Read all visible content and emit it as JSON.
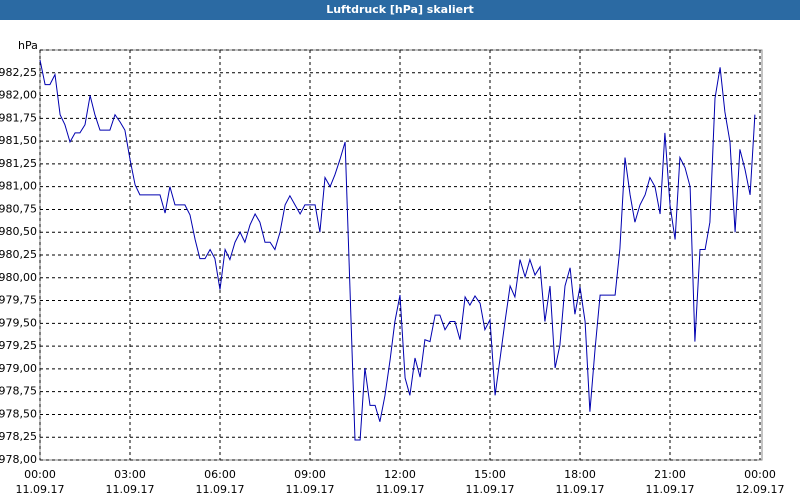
{
  "chart_data": {
    "type": "line",
    "title": "Luftdruck [hPa] skaliert",
    "y_unit": "hPa",
    "color": "#0000b0",
    "grid": true,
    "ylim": [
      978,
      982.5
    ],
    "yticks": [
      {
        "value": 978,
        "label": "978,00"
      },
      {
        "value": 978.25,
        "label": "978,25"
      },
      {
        "value": 978.5,
        "label": "978,50"
      },
      {
        "value": 978.75,
        "label": "978,75"
      },
      {
        "value": 979,
        "label": "979,00"
      },
      {
        "value": 979.25,
        "label": "979,25"
      },
      {
        "value": 979.5,
        "label": "979,50"
      },
      {
        "value": 979.75,
        "label": "979,75"
      },
      {
        "value": 980,
        "label": "980,00"
      },
      {
        "value": 980.25,
        "label": "980,25"
      },
      {
        "value": 980.5,
        "label": "980,50"
      },
      {
        "value": 980.75,
        "label": "980,75"
      },
      {
        "value": 981,
        "label": "981,00"
      },
      {
        "value": 981.25,
        "label": "981,25"
      },
      {
        "value": 981.5,
        "label": "981,50"
      },
      {
        "value": 981.75,
        "label": "981,75"
      },
      {
        "value": 982,
        "label": "982,00"
      },
      {
        "value": 982.25,
        "label": "982,25"
      }
    ],
    "xlim": [
      0,
      24
    ],
    "xticks": [
      {
        "value": 0,
        "label": "00:00"
      },
      {
        "value": 3,
        "label": "03:00"
      },
      {
        "value": 6,
        "label": "06:00"
      },
      {
        "value": 9,
        "label": "09:00"
      },
      {
        "value": 12,
        "label": "12:00"
      },
      {
        "value": 15,
        "label": "15:00"
      },
      {
        "value": 18,
        "label": "18:00"
      },
      {
        "value": 21,
        "label": "21:00"
      },
      {
        "value": 24,
        "label": "00:00"
      }
    ],
    "xtick_dates": [
      "11.09.17",
      "11.09.17",
      "11.09.17",
      "11.09.17",
      "11.09.17",
      "11.09.17",
      "11.09.17",
      "11.09.17",
      "12.09.17"
    ],
    "x": [
      0,
      0.17,
      0.33,
      0.5,
      0.67,
      0.83,
      1,
      1.17,
      1.33,
      1.5,
      1.67,
      1.83,
      2,
      2.17,
      2.33,
      2.5,
      2.67,
      2.83,
      3,
      3.17,
      3.33,
      3.5,
      3.67,
      3.83,
      4,
      4.17,
      4.33,
      4.5,
      4.67,
      4.83,
      5,
      5.17,
      5.33,
      5.5,
      5.67,
      5.83,
      6,
      6.17,
      6.33,
      6.5,
      6.67,
      6.83,
      7,
      7.17,
      7.33,
      7.5,
      7.67,
      7.83,
      8,
      8.17,
      8.33,
      8.5,
      8.67,
      8.83,
      9,
      9.17,
      9.33,
      9.5,
      9.67,
      9.83,
      10,
      10.17,
      10.5,
      10.67,
      10.83,
      11,
      11.17,
      11.33,
      11.5,
      11.67,
      11.83,
      12,
      12.17,
      12.33,
      12.5,
      12.67,
      12.83,
      13,
      13.17,
      13.33,
      13.5,
      13.67,
      13.83,
      14,
      14.17,
      14.33,
      14.5,
      14.67,
      14.83,
      15,
      15.17,
      15.33,
      15.5,
      15.67,
      15.83,
      16,
      16.17,
      16.33,
      16.5,
      16.67,
      16.83,
      17,
      17.17,
      17.33,
      17.5,
      17.67,
      17.83,
      18,
      18.17,
      18.33,
      18.5,
      18.67,
      18.83,
      19,
      19.17,
      19.33,
      19.5,
      19.67,
      19.83,
      20,
      20.17,
      20.33,
      20.5,
      20.67,
      20.83,
      21,
      21.17,
      21.33,
      21.5,
      21.67,
      21.83,
      22,
      22.17,
      22.33,
      22.5,
      22.67,
      22.83,
      23,
      23.17,
      23.33,
      23.5,
      23.67,
      23.83
    ],
    "values": [
      982.39,
      982.12,
      982.12,
      982.23,
      981.79,
      981.68,
      981.49,
      981.59,
      981.59,
      981.68,
      982.0,
      981.79,
      981.62,
      981.62,
      981.62,
      981.79,
      981.71,
      981.62,
      981.3,
      981.02,
      980.91,
      980.91,
      980.91,
      980.91,
      980.91,
      980.71,
      981.0,
      980.8,
      980.8,
      980.8,
      980.69,
      980.42,
      980.21,
      980.21,
      980.31,
      980.21,
      979.87,
      980.31,
      980.2,
      980.39,
      980.5,
      980.39,
      980.58,
      980.7,
      980.61,
      980.39,
      980.39,
      980.31,
      980.5,
      980.8,
      980.9,
      980.8,
      980.7,
      980.8,
      980.8,
      980.8,
      980.5,
      981.1,
      981.0,
      981.13,
      981.3,
      981.49,
      978.22,
      978.22,
      979.01,
      978.6,
      978.6,
      978.42,
      978.71,
      979.1,
      979.52,
      979.81,
      978.9,
      978.71,
      979.12,
      978.91,
      979.32,
      979.3,
      979.59,
      979.59,
      979.43,
      979.52,
      979.52,
      979.32,
      979.79,
      979.7,
      979.8,
      979.72,
      979.43,
      979.54,
      978.71,
      979.1,
      979.52,
      979.91,
      979.79,
      980.2,
      980.01,
      980.2,
      980.03,
      980.12,
      979.52,
      979.91,
      979.01,
      979.26,
      979.91,
      980.11,
      979.6,
      979.9,
      979.52,
      978.53,
      979.21,
      979.81,
      979.81,
      979.81,
      979.81,
      980.32,
      981.32,
      980.91,
      980.61,
      980.8,
      980.91,
      981.1,
      981.0,
      980.7,
      981.59,
      980.8,
      980.42,
      981.32,
      981.21,
      981.0,
      979.3,
      980.31,
      980.31,
      980.61,
      981.97,
      982.31,
      981.82,
      981.49,
      980.5,
      981.41,
      981.19,
      980.91,
      981.79
    ]
  }
}
